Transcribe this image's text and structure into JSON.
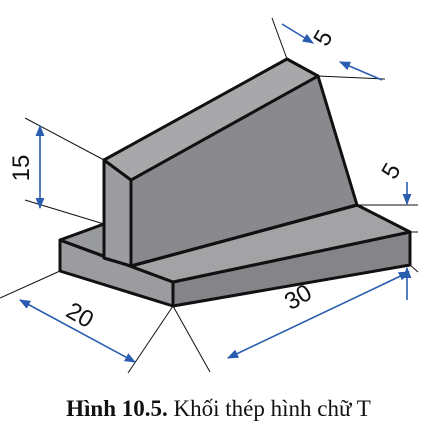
{
  "colors": {
    "face_front": "#858589",
    "face_side": "#a9a9ac",
    "face_top": "#999a9d",
    "edge": "#111111",
    "dimension_arrow": "#2a5db0"
  },
  "dimensions": {
    "web_thickness": "5",
    "web_height": "15",
    "base_height": "5",
    "base_width": "20",
    "base_length": "30"
  },
  "caption": {
    "label": "Hình 10.5.",
    "text": " Khối thép hình chữ T"
  }
}
